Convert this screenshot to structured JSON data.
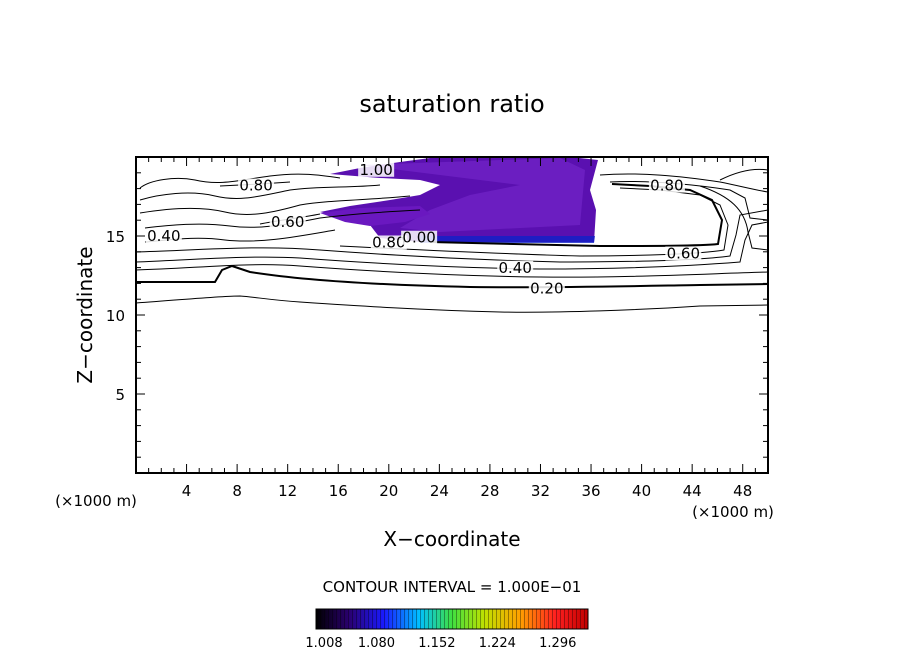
{
  "chart_data": {
    "type": "contour",
    "title": "saturation ratio",
    "xlabel": "X−coordinate",
    "ylabel": "Z−coordinate",
    "x_unit": "(×1000 m)",
    "z_unit": "(×1000 m)",
    "xlim": [
      0,
      50
    ],
    "ylim": [
      0,
      20
    ],
    "x_ticks": [
      "4",
      "8",
      "12",
      "16",
      "20",
      "24",
      "28",
      "32",
      "36",
      "40",
      "44",
      "48"
    ],
    "y_ticks": [
      "5",
      "10",
      "15"
    ],
    "contour_labels": [
      {
        "text": "1.00",
        "x": 19,
        "z": 19.0
      },
      {
        "text": "0.80",
        "x": 9.5,
        "z": 18.0
      },
      {
        "text": "0.80",
        "x": 42,
        "z": 18.0
      },
      {
        "text": "0.60",
        "x": 12.0,
        "z": 15.7
      },
      {
        "text": "0.40",
        "x": 2.2,
        "z": 14.8
      },
      {
        "text": "0.80",
        "x": 20.0,
        "z": 14.4
      },
      {
        "text": "0.00",
        "x": 22.4,
        "z": 14.7
      },
      {
        "text": "0.60",
        "x": 43.3,
        "z": 13.7
      },
      {
        "text": "0.40",
        "x": 30.0,
        "z": 12.8
      },
      {
        "text": "0.20",
        "x": 32.5,
        "z": 11.5
      }
    ],
    "contour_interval_text": "CONTOUR INTERVAL = 1.000E−01",
    "colorbar": {
      "min": 1.008,
      "max": 1.332,
      "ticks": [
        "1.008",
        "1.080",
        "1.152",
        "1.224",
        "1.296"
      ],
      "colors": [
        "#000000",
        "#2a006e",
        "#1a1aff",
        "#00c0ff",
        "#40e040",
        "#c0e000",
        "#ffa000",
        "#ff2020",
        "#c00000"
      ]
    },
    "shaded_region": {
      "x_range": [
        14.5,
        36
      ],
      "z_range": [
        14.6,
        19.9
      ],
      "fill_color": "#6a00b8"
    }
  }
}
